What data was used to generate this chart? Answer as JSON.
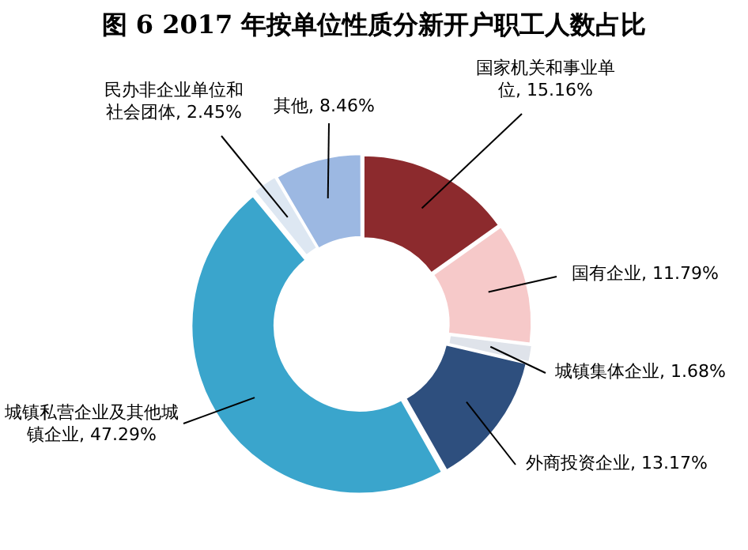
{
  "chart_data": {
    "type": "donut",
    "title": "图 6 2017 年按单位性质分新开户职工人数占比",
    "categories": [
      "国家机关和事业单位",
      "国有企业",
      "城镇集体企业",
      "外商投资企业",
      "城镇私营企业及其他城镇企业",
      "民办非企业单位和社会团体",
      "其他"
    ],
    "values": [
      15.16,
      11.79,
      1.68,
      13.17,
      47.29,
      2.45,
      8.46
    ],
    "value_labels": [
      "15.16%",
      "11.79%",
      "1.68%",
      "13.17%",
      "47.29%",
      "2.45%",
      "8.46%"
    ],
    "colors": [
      "#8c2a2d",
      "#f6c9c9",
      "#dfe3ea",
      "#2e4f7e",
      "#3aa5cc",
      "#dde7f2",
      "#9cb8e2"
    ],
    "legend": false
  }
}
